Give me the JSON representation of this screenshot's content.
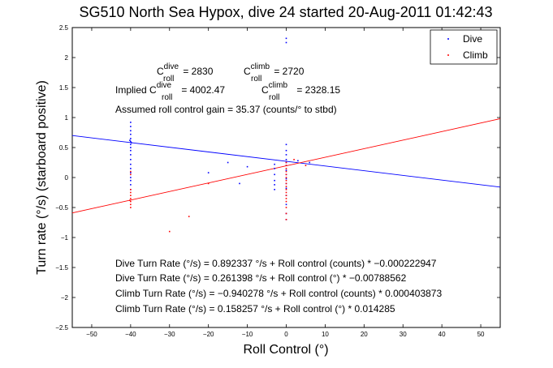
{
  "chart_data": {
    "type": "scatter",
    "title": "SG510 North Sea Hypox, dive 24 started 20-Aug-2011 01:42:43",
    "xlabel": "Roll Control (°)",
    "ylabel": "Turn rate (°/s) (starboard positive)",
    "xlim": [
      -55,
      55
    ],
    "ylim": [
      -2.5,
      2.5
    ],
    "xticks": [
      -50,
      -40,
      -30,
      -20,
      -10,
      0,
      10,
      20,
      30,
      40,
      50
    ],
    "yticks": [
      -2.5,
      -2,
      -1.5,
      -1,
      -0.5,
      0,
      0.5,
      1,
      1.5,
      2,
      2.5
    ],
    "xtick_labels": [
      "−50",
      "−40",
      "−30",
      "−20",
      "−10",
      "0",
      "10",
      "20",
      "30",
      "40",
      "50"
    ],
    "ytick_labels": [
      "−2.5",
      "−2",
      "−1.5",
      "−1",
      "−0.5",
      "0",
      "0.5",
      "1",
      "1.5",
      "2",
      "2.5"
    ],
    "grid": false,
    "legend_position": "top-right",
    "series": [
      {
        "name": "Dive",
        "color": "#0000ff",
        "points": [
          [
            -40,
            0.92
          ],
          [
            -40,
            0.85
          ],
          [
            -40,
            0.78
          ],
          [
            -40,
            0.72
          ],
          [
            -40,
            0.65
          ],
          [
            -40,
            0.6
          ],
          [
            -40,
            0.55
          ],
          [
            -40,
            0.5
          ],
          [
            -40,
            0.45
          ],
          [
            -40,
            0.38
          ],
          [
            -40,
            0.3
          ],
          [
            -40,
            0.22
          ],
          [
            -40,
            0.15
          ],
          [
            -40,
            0.08
          ],
          [
            -40,
            0.0
          ],
          [
            -40,
            -0.05
          ],
          [
            -40,
            -0.12
          ],
          [
            -40,
            -0.2
          ],
          [
            -39.8,
            0.58
          ],
          [
            -40.2,
            0.62
          ],
          [
            0,
            2.32
          ],
          [
            0,
            2.25
          ],
          [
            0,
            0.55
          ],
          [
            0,
            0.45
          ],
          [
            0,
            0.38
          ],
          [
            0,
            0.3
          ],
          [
            0,
            0.25
          ],
          [
            0,
            0.2
          ],
          [
            0,
            0.12
          ],
          [
            0,
            0.05
          ],
          [
            0,
            -0.02
          ],
          [
            0,
            -0.1
          ],
          [
            0,
            -0.18
          ],
          [
            0,
            -0.3
          ],
          [
            0,
            -0.45
          ],
          [
            0,
            -0.6
          ],
          [
            0,
            -0.7
          ],
          [
            -3,
            0.22
          ],
          [
            -3,
            0.15
          ],
          [
            -3,
            0.05
          ],
          [
            -3,
            -0.05
          ],
          [
            -3,
            -0.12
          ],
          [
            -3,
            -0.2
          ],
          [
            -10,
            0.18
          ],
          [
            -15,
            0.25
          ],
          [
            -20,
            0.08
          ],
          [
            -12,
            -0.1
          ],
          [
            3,
            0.28
          ],
          [
            6,
            0.25
          ]
        ]
      },
      {
        "name": "Climb",
        "color": "#ff0000",
        "points": [
          [
            -40,
            -0.2
          ],
          [
            -40,
            -0.25
          ],
          [
            -40,
            -0.3
          ],
          [
            -40,
            -0.35
          ],
          [
            -40,
            -0.4
          ],
          [
            -40,
            -0.45
          ],
          [
            -40,
            -0.5
          ],
          [
            -40,
            0.1
          ],
          [
            -40,
            0.05
          ],
          [
            -40.2,
            -0.38
          ],
          [
            0,
            0.25
          ],
          [
            0,
            0.2
          ],
          [
            0,
            0.15
          ],
          [
            0,
            0.1
          ],
          [
            0,
            0.05
          ],
          [
            0,
            0.0
          ],
          [
            0,
            -0.05
          ],
          [
            0,
            -0.1
          ],
          [
            0,
            -0.15
          ],
          [
            0,
            -0.2
          ],
          [
            0,
            -0.25
          ],
          [
            0,
            -0.3
          ],
          [
            0,
            -0.35
          ],
          [
            0,
            -0.4
          ],
          [
            0,
            -0.5
          ],
          [
            0,
            -0.6
          ],
          [
            0,
            -0.7
          ],
          [
            -25,
            -0.65
          ],
          [
            -30,
            -0.9
          ],
          [
            -20,
            -0.1
          ],
          [
            2,
            0.3
          ],
          [
            5,
            0.2
          ]
        ]
      }
    ],
    "fit_lines": [
      {
        "color": "#0000ff",
        "from": [
          -55,
          0.7
        ],
        "to": [
          55,
          -0.16
        ]
      },
      {
        "color": "#ff0000",
        "from": [
          -55,
          -0.59
        ],
        "to": [
          55,
          0.98
        ]
      }
    ],
    "annotations": {
      "c_dive_base": "C",
      "c_dive_sup": "dive",
      "c_dive_sub": "roll",
      "c_dive_val": " = 2830",
      "c_climb_base": "C",
      "c_climb_sup": "climb",
      "c_climb_sub": "roll",
      "c_climb_val": " = 2720",
      "implied_prefix": "Implied C",
      "implied_dive_sup": "dive",
      "implied_dive_sub": "roll",
      "implied_dive_val": " = 4002.47",
      "implied_climb_base": "C",
      "implied_climb_sup": "climb",
      "implied_climb_sub": "roll",
      "implied_climb_val": " = 2328.15",
      "gain": "Assumed roll control gain = 35.37 (counts/° to stbd)",
      "eq1": "Dive Turn Rate (°/s) = 0.892337 °/s + Roll control (counts) * −0.000222947",
      "eq2": "Dive Turn Rate (°/s) = 0.261398 °/s + Roll control (°) * −0.00788562",
      "eq3": "Climb Turn Rate (°/s) = −0.940278 °/s + Roll control (counts) * 0.000403873",
      "eq4": "Climb Turn Rate (°/s) = 0.158257 °/s + Roll control (°) * 0.014285"
    }
  }
}
